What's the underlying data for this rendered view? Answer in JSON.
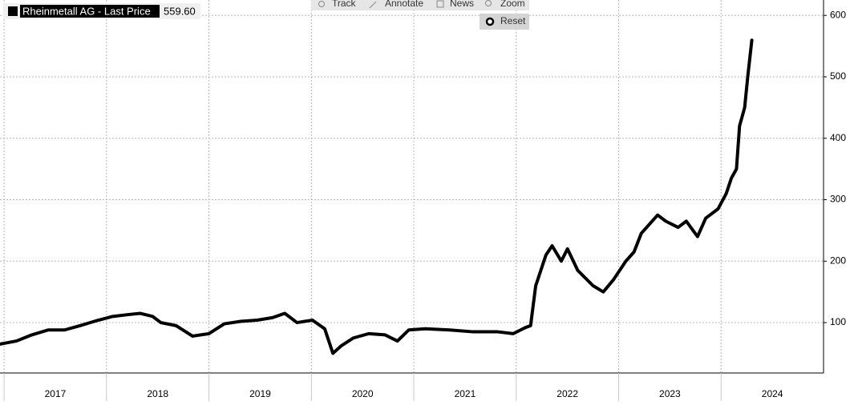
{
  "chart_data": {
    "type": "line",
    "series": [
      {
        "name": "Rheinmetall AG - Last Price",
        "color": "#000000",
        "last_price": {
          "value": 559.6,
          "label": "559.60"
        },
        "x": [
          2016.96,
          2017.12,
          2017.27,
          2017.43,
          2017.59,
          2017.74,
          2017.9,
          2018.06,
          2018.21,
          2018.33,
          2018.45,
          2018.53,
          2018.68,
          2018.84,
          2019.0,
          2019.15,
          2019.31,
          2019.47,
          2019.62,
          2019.74,
          2019.86,
          2020.01,
          2020.13,
          2020.21,
          2020.29,
          2020.41,
          2020.56,
          2020.72,
          2020.84,
          2020.95,
          2021.11,
          2021.35,
          2021.58,
          2021.82,
          2021.97,
          2022.09,
          2022.14,
          2022.19,
          2022.29,
          2022.35,
          2022.44,
          2022.5,
          2022.6,
          2022.75,
          2022.85,
          2022.95,
          2023.07,
          2023.15,
          2023.22,
          2023.3,
          2023.38,
          2023.46,
          2023.58,
          2023.66,
          2023.77,
          2023.85,
          2023.97,
          2024.05,
          2024.1,
          2024.15,
          2024.18,
          2024.23,
          2024.26,
          2024.3
        ],
        "values": [
          65,
          70,
          80,
          88,
          88,
          95,
          103,
          110,
          113,
          115,
          110,
          100,
          95,
          78,
          82,
          98,
          102,
          104,
          108,
          115,
          100,
          104,
          90,
          50,
          62,
          75,
          82,
          80,
          70,
          88,
          90,
          88,
          85,
          85,
          82,
          92,
          95,
          160,
          210,
          225,
          200,
          220,
          185,
          160,
          150,
          170,
          200,
          215,
          245,
          260,
          275,
          265,
          255,
          265,
          240,
          270,
          285,
          310,
          335,
          350,
          420,
          450,
          500,
          559.6
        ]
      }
    ],
    "xlim": [
      2016.96,
      2025
    ],
    "xticks": [
      {
        "value": 2017,
        "label": "2017"
      },
      {
        "value": 2018,
        "label": "2018"
      },
      {
        "value": 2019,
        "label": "2019"
      },
      {
        "value": 2020,
        "label": "2020"
      },
      {
        "value": 2021,
        "label": "2021"
      },
      {
        "value": 2022,
        "label": "2022"
      },
      {
        "value": 2023,
        "label": "2023"
      },
      {
        "value": 2024,
        "label": "2024"
      }
    ],
    "ylim": [
      18,
      625
    ],
    "yticks": [
      100,
      200,
      300,
      400,
      500,
      600
    ],
    "grid": true
  },
  "toolbar": {
    "items": [
      "Track",
      "Annotate",
      "News",
      "Zoom"
    ],
    "reset": "Reset"
  }
}
